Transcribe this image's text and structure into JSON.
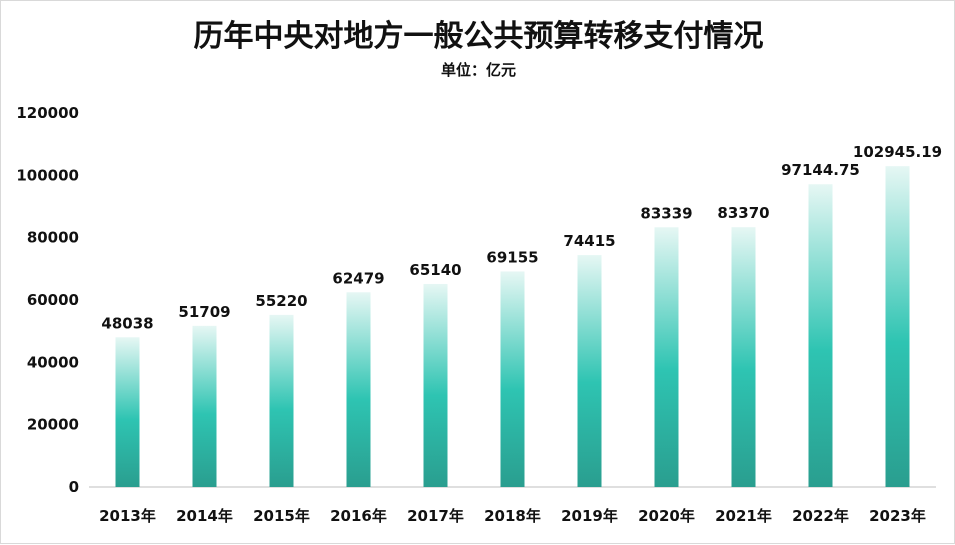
{
  "chart_data": {
    "type": "bar",
    "title": "历年中央对地方一般公共预算转移支付情况",
    "subtitle": "单位：亿元",
    "categories": [
      "2013年",
      "2014年",
      "2015年",
      "2016年",
      "2017年",
      "2018年",
      "2019年",
      "2020年",
      "2021年",
      "2022年",
      "2023年"
    ],
    "values": [
      48038,
      51709,
      55220,
      62479,
      65140,
      69155,
      74415,
      83339,
      83370,
      97144.75,
      102945.19
    ],
    "value_labels": [
      "48038",
      "51709",
      "55220",
      "62479",
      "65140",
      "69155",
      "74415",
      "83339",
      "83370",
      "97144.75",
      "102945.19"
    ],
    "y_ticks": [
      "0",
      "20000",
      "40000",
      "60000",
      "80000",
      "100000",
      "120000"
    ],
    "ylim": [
      0,
      120000
    ],
    "xlabel": "",
    "ylabel": "",
    "grid": false,
    "legend": "none",
    "colors": {
      "bar_top": "#e6f7f4",
      "bar_mid": "#2ec4b2",
      "bar_bottom": "#2a9e8f"
    }
  }
}
